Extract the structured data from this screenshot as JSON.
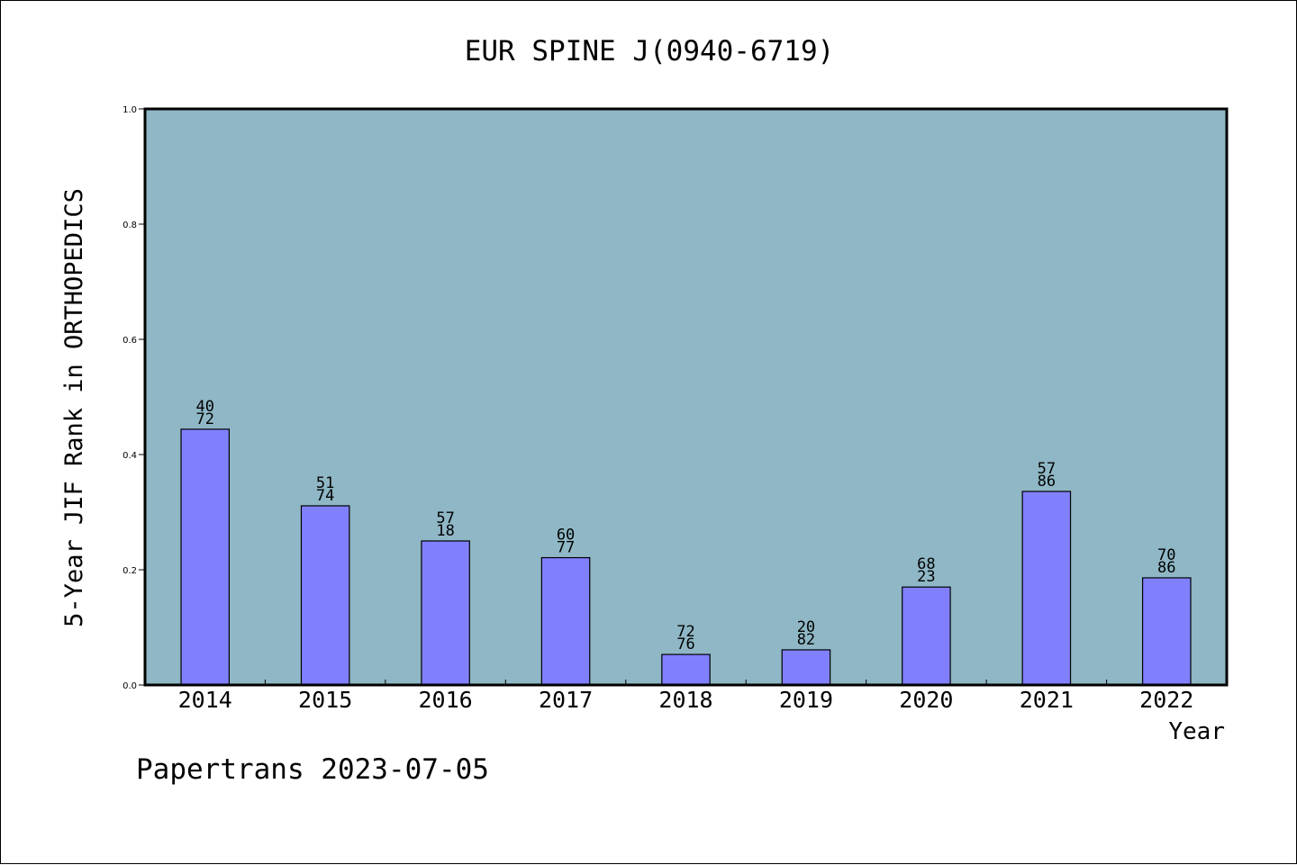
{
  "chart_data": {
    "type": "bar",
    "title": "EUR SPINE J(0940-6719)",
    "xlabel": "Year",
    "ylabel": "5-Year JIF Rank in ORTHOPEDICS",
    "ylim": [
      0.0,
      1.0
    ],
    "yticks": [
      "0.0",
      "0.2",
      "0.4",
      "0.6",
      "0.8",
      "1.0"
    ],
    "categories": [
      "2014",
      "2015",
      "2016",
      "2017",
      "2018",
      "2019",
      "2020",
      "2021",
      "2022"
    ],
    "values": [
      0.444,
      0.311,
      0.25,
      0.221,
      0.053,
      0.061,
      0.17,
      0.336,
      0.186
    ],
    "data_labels": [
      [
        "40",
        "72"
      ],
      [
        "51",
        "74"
      ],
      [
        "57",
        "18"
      ],
      [
        "60",
        "77"
      ],
      [
        "72",
        "76"
      ],
      [
        "20",
        "82"
      ],
      [
        "68",
        "23"
      ],
      [
        "57",
        "86"
      ],
      [
        "70",
        "86"
      ]
    ],
    "grid": false,
    "colors": {
      "plot_background": "#8fb7c5",
      "bar_fill": "#8080ff",
      "bar_edge": "#000000"
    }
  },
  "footer": {
    "credit": "Papertrans 2023-07-05"
  }
}
